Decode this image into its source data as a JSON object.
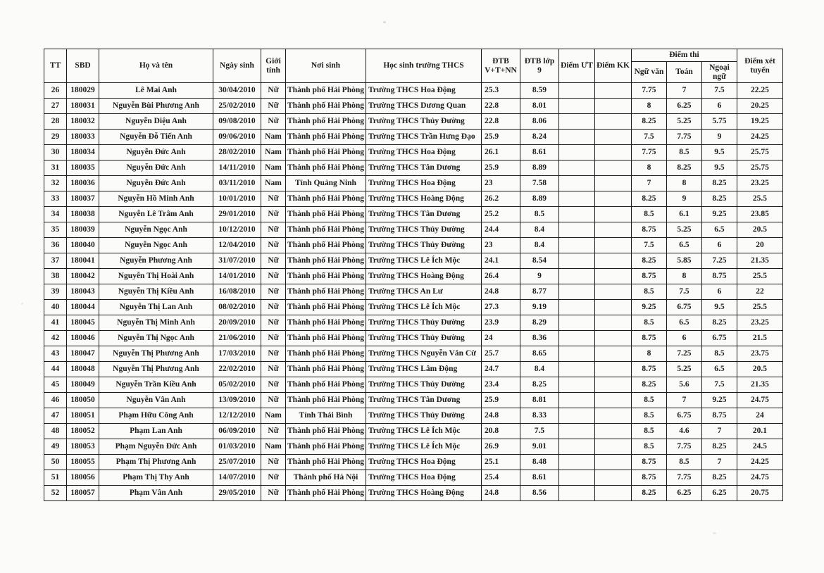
{
  "table": {
    "headers": {
      "tt": "TT",
      "sbd": "SBD",
      "ho_va_ten": "Họ và tên",
      "ngay_sinh": "Ngày sinh",
      "gioi_tinh": "Giới tính",
      "noi_sinh": "Nơi sinh",
      "truong_thcs": "Học sinh trường THCS",
      "dtb_vtnn": "ĐTB V+T+NN",
      "dtb_lop9": "ĐTB lớp 9",
      "diem_ut": "Điểm ƯT",
      "diem_kk": "Điểm KK",
      "diem_thi": "Điểm thi",
      "ngu_van": "Ngữ văn",
      "toan": "Toán",
      "ngoai_ngu": "Ngoại ngữ",
      "diem_xet_tuyen": "Điểm xét tuyển"
    },
    "col_keys": [
      "cell-tt",
      "cell-sbd",
      "cell-ho-va-ten",
      "cell-ngay-sinh",
      "cell-gioi-tinh",
      "cell-noi-sinh",
      "cell-truong-thcs",
      "cell-dtb-vtnn",
      "cell-dtb-lop9",
      "cell-diem-ut",
      "cell-diem-kk",
      "cell-ngu-van",
      "cell-toan",
      "cell-ngoai-ngu",
      "cell-diem-xet-tuyen"
    ],
    "rows": [
      [
        "26",
        "180029",
        "Lê Mai Anh",
        "30/04/2010",
        "Nữ",
        "Thành phố Hải Phòng",
        "Trường THCS Hoa Động",
        "25.3",
        "8.59",
        "",
        "",
        "7.75",
        "7",
        "7.5",
        "22.25"
      ],
      [
        "27",
        "180031",
        "Nguyễn Bùi Phương Anh",
        "25/02/2010",
        "Nữ",
        "Thành phố Hải Phòng",
        "Trường THCS Dương Quan",
        "22.8",
        "8.01",
        "",
        "",
        "8",
        "6.25",
        "6",
        "20.25"
      ],
      [
        "28",
        "180032",
        "Nguyễn Diệu Anh",
        "09/08/2010",
        "Nữ",
        "Thành phố Hải Phòng",
        "Trường THCS Thủy Đường",
        "22.8",
        "8.06",
        "",
        "",
        "8.25",
        "5.25",
        "5.75",
        "19.25"
      ],
      [
        "29",
        "180033",
        "Nguyễn Đỗ Tiến Anh",
        "09/06/2010",
        "Nam",
        "Thành phố Hải Phòng",
        "Trường THCS Trần Hưng Đạo",
        "25.9",
        "8.24",
        "",
        "",
        "7.5",
        "7.75",
        "9",
        "24.25"
      ],
      [
        "30",
        "180034",
        "Nguyễn Đức Anh",
        "28/02/2010",
        "Nam",
        "Thành phố Hải Phòng",
        "Trường THCS Hoa Động",
        "26.1",
        "8.61",
        "",
        "",
        "7.75",
        "8.5",
        "9.5",
        "25.75"
      ],
      [
        "31",
        "180035",
        "Nguyễn Đức Anh",
        "14/11/2010",
        "Nam",
        "Thành phố Hải Phòng",
        "Trường THCS Tân Dương",
        "25.9",
        "8.89",
        "",
        "",
        "8",
        "8.25",
        "9.5",
        "25.75"
      ],
      [
        "32",
        "180036",
        "Nguyễn Đức Anh",
        "03/11/2010",
        "Nam",
        "Tỉnh Quảng Ninh",
        "Trường THCS Hoa Động",
        "23",
        "7.58",
        "",
        "",
        "7",
        "8",
        "8.25",
        "23.25"
      ],
      [
        "33",
        "180037",
        "Nguyễn Hồ Minh Anh",
        "10/01/2010",
        "Nữ",
        "Thành phố Hải Phòng",
        "Trường THCS Hoàng Động",
        "26.2",
        "8.89",
        "",
        "",
        "8.25",
        "9",
        "8.25",
        "25.5"
      ],
      [
        "34",
        "180038",
        "Nguyễn Lê Trâm Anh",
        "29/01/2010",
        "Nữ",
        "Thành phố Hải Phòng",
        "Trường THCS Tân Dương",
        "25.2",
        "8.5",
        "",
        "",
        "8.5",
        "6.1",
        "9.25",
        "23.85"
      ],
      [
        "35",
        "180039",
        "Nguyễn Ngọc Anh",
        "10/12/2010",
        "Nữ",
        "Thành phố Hải Phòng",
        "Trường THCS Thủy Đường",
        "24.4",
        "8.4",
        "",
        "",
        "8.75",
        "5.25",
        "6.5",
        "20.5"
      ],
      [
        "36",
        "180040",
        "Nguyễn Ngọc Anh",
        "12/04/2010",
        "Nữ",
        "Thành phố Hải Phòng",
        "Trường THCS Thủy Đường",
        "23",
        "8.4",
        "",
        "",
        "7.5",
        "6.5",
        "6",
        "20"
      ],
      [
        "37",
        "180041",
        "Nguyễn Phương Anh",
        "31/07/2010",
        "Nữ",
        "Thành phố Hải Phòng",
        "Trường THCS Lê Ích Mộc",
        "24.1",
        "8.54",
        "",
        "",
        "8.25",
        "5.85",
        "7.25",
        "21.35"
      ],
      [
        "38",
        "180042",
        "Nguyễn Thị Hoài Anh",
        "14/01/2010",
        "Nữ",
        "Thành phố Hải Phòng",
        "Trường THCS Hoàng Động",
        "26.4",
        "9",
        "",
        "",
        "8.75",
        "8",
        "8.75",
        "25.5"
      ],
      [
        "39",
        "180043",
        "Nguyễn Thị Kiều Anh",
        "16/08/2010",
        "Nữ",
        "Thành phố Hải Phòng",
        "Trường THCS An Lư",
        "24.8",
        "8.77",
        "",
        "",
        "8.5",
        "7.5",
        "6",
        "22"
      ],
      [
        "40",
        "180044",
        "Nguyễn Thị Lan Anh",
        "08/02/2010",
        "Nữ",
        "Thành phố Hải Phòng",
        "Trường THCS Lê Ích Mộc",
        "27.3",
        "9.19",
        "",
        "",
        "9.25",
        "6.75",
        "9.5",
        "25.5"
      ],
      [
        "41",
        "180045",
        "Nguyễn Thị Minh Anh",
        "20/09/2010",
        "Nữ",
        "Thành phố Hải Phòng",
        "Trường THCS Thủy Đường",
        "23.9",
        "8.29",
        "",
        "",
        "8.5",
        "6.5",
        "8.25",
        "23.25"
      ],
      [
        "42",
        "180046",
        "Nguyễn Thị Ngọc Anh",
        "21/06/2010",
        "Nữ",
        "Thành phố Hải Phòng",
        "Trường THCS Thủy Đường",
        "24",
        "8.36",
        "",
        "",
        "8.75",
        "6",
        "6.75",
        "21.5"
      ],
      [
        "43",
        "180047",
        "Nguyễn Thị Phương Anh",
        "17/03/2010",
        "Nữ",
        "Thành phố Hải Phòng",
        "Trường THCS Nguyễn Văn Cừ",
        "25.7",
        "8.65",
        "",
        "",
        "8",
        "7.25",
        "8.5",
        "23.75"
      ],
      [
        "44",
        "180048",
        "Nguyễn Thị Phương Anh",
        "22/02/2010",
        "Nữ",
        "Thành phố Hải Phòng",
        "Trường THCS Lâm Động",
        "24.7",
        "8.4",
        "",
        "",
        "8.75",
        "5.25",
        "6.5",
        "20.5"
      ],
      [
        "45",
        "180049",
        "Nguyễn Trần Kiều Anh",
        "05/02/2010",
        "Nữ",
        "Thành phố Hải Phòng",
        "Trường THCS Thủy Đường",
        "23.4",
        "8.25",
        "",
        "",
        "8.25",
        "5.6",
        "7.5",
        "21.35"
      ],
      [
        "46",
        "180050",
        "Nguyễn Vân Anh",
        "13/09/2010",
        "Nữ",
        "Thành phố Hải Phòng",
        "Trường THCS Tân Dương",
        "25.9",
        "8.81",
        "",
        "",
        "8.5",
        "7",
        "9.25",
        "24.75"
      ],
      [
        "47",
        "180051",
        "Phạm Hữu Công Anh",
        "12/12/2010",
        "Nam",
        "Tỉnh Thái Bình",
        "Trường THCS Thủy Đường",
        "24.8",
        "8.33",
        "",
        "",
        "8.5",
        "6.75",
        "8.75",
        "24"
      ],
      [
        "48",
        "180052",
        "Phạm Lan Anh",
        "06/09/2010",
        "Nữ",
        "Thành phố Hải Phòng",
        "Trường THCS Lê Ích Mộc",
        "20.8",
        "7.5",
        "",
        "",
        "8.5",
        "4.6",
        "7",
        "20.1"
      ],
      [
        "49",
        "180053",
        "Phạm Nguyễn Đức Anh",
        "01/03/2010",
        "Nam",
        "Thành phố Hải Phòng",
        "Trường THCS Lê Ích Mộc",
        "26.9",
        "9.01",
        "",
        "",
        "8.5",
        "7.75",
        "8.25",
        "24.5"
      ],
      [
        "50",
        "180055",
        "Phạm Thị Phương Anh",
        "25/07/2010",
        "Nữ",
        "Thành phố Hải Phòng",
        "Trường THCS Hoa Động",
        "25.1",
        "8.48",
        "",
        "",
        "8.75",
        "8.5",
        "7",
        "24.25"
      ],
      [
        "51",
        "180056",
        "Phạm Thị Thy Anh",
        "14/07/2010",
        "Nữ",
        "Thành phố Hà Nội",
        "Trường THCS Hoa Động",
        "25.4",
        "8.61",
        "",
        "",
        "8.75",
        "7.75",
        "8.25",
        "24.75"
      ],
      [
        "52",
        "180057",
        "Phạm Vân Anh",
        "29/05/2010",
        "Nữ",
        "Thành phố Hải Phòng",
        "Trường THCS Hoàng Động",
        "24.8",
        "8.56",
        "",
        "",
        "8.25",
        "6.25",
        "6.25",
        "20.75"
      ]
    ]
  }
}
